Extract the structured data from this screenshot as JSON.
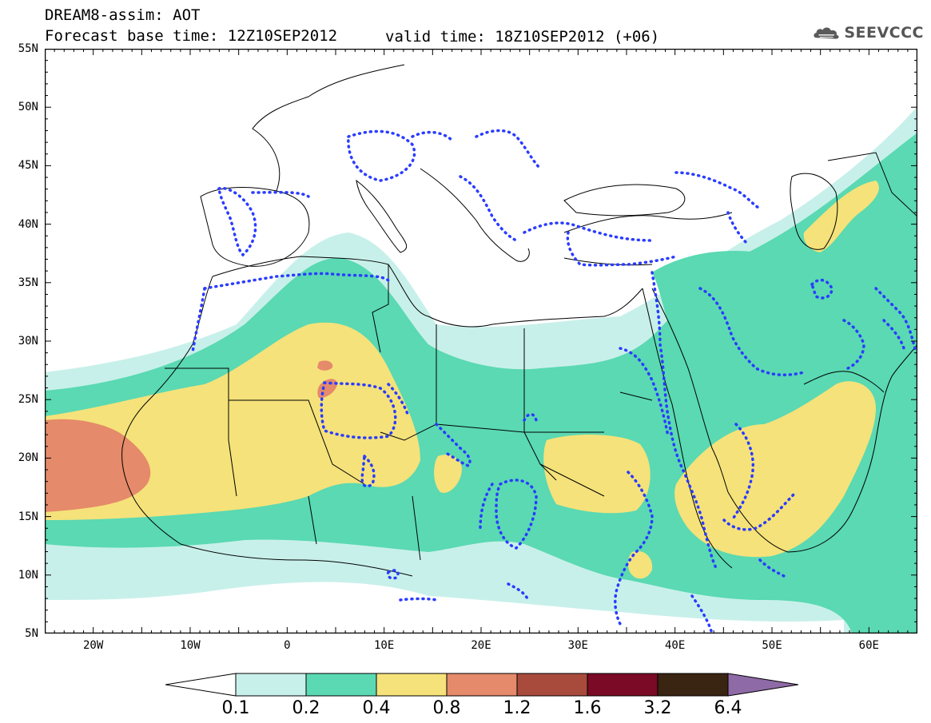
{
  "header": {
    "title": "DREAM8-assim: AOT",
    "base_time": "Forecast base time: 12Z10SEP2012",
    "valid_time": "valid time: 18Z10SEP2012 (+06)"
  },
  "logo": {
    "text": "SEEVCCC",
    "icon": "cloud-icon",
    "color": "#555555"
  },
  "map": {
    "projection": "lat-lon",
    "lon_range": [
      -25,
      65
    ],
    "lat_range": [
      5,
      55
    ],
    "lat_labels": [
      "55N",
      "50N",
      "45N",
      "40N",
      "35N",
      "30N",
      "25N",
      "20N",
      "15N",
      "10N",
      "5N"
    ],
    "lon_labels": [
      "20W",
      "10W",
      "0",
      "10E",
      "20E",
      "30E",
      "40E",
      "50E",
      "60E"
    ],
    "coastline_color": "#000000",
    "precip_contour_color": "#2a3cff"
  },
  "legend": {
    "tick_labels": [
      "0.1",
      "0.2",
      "0.4",
      "0.8",
      "1.2",
      "1.6",
      "3.2",
      "6.4"
    ],
    "colors": [
      "#ffffff",
      "#c8f0ea",
      "#5ad9b2",
      "#f5e27a",
      "#e58a6a",
      "#a84b3c",
      "#7a0a25",
      "#3a2412",
      "#8e6aa6"
    ]
  }
}
